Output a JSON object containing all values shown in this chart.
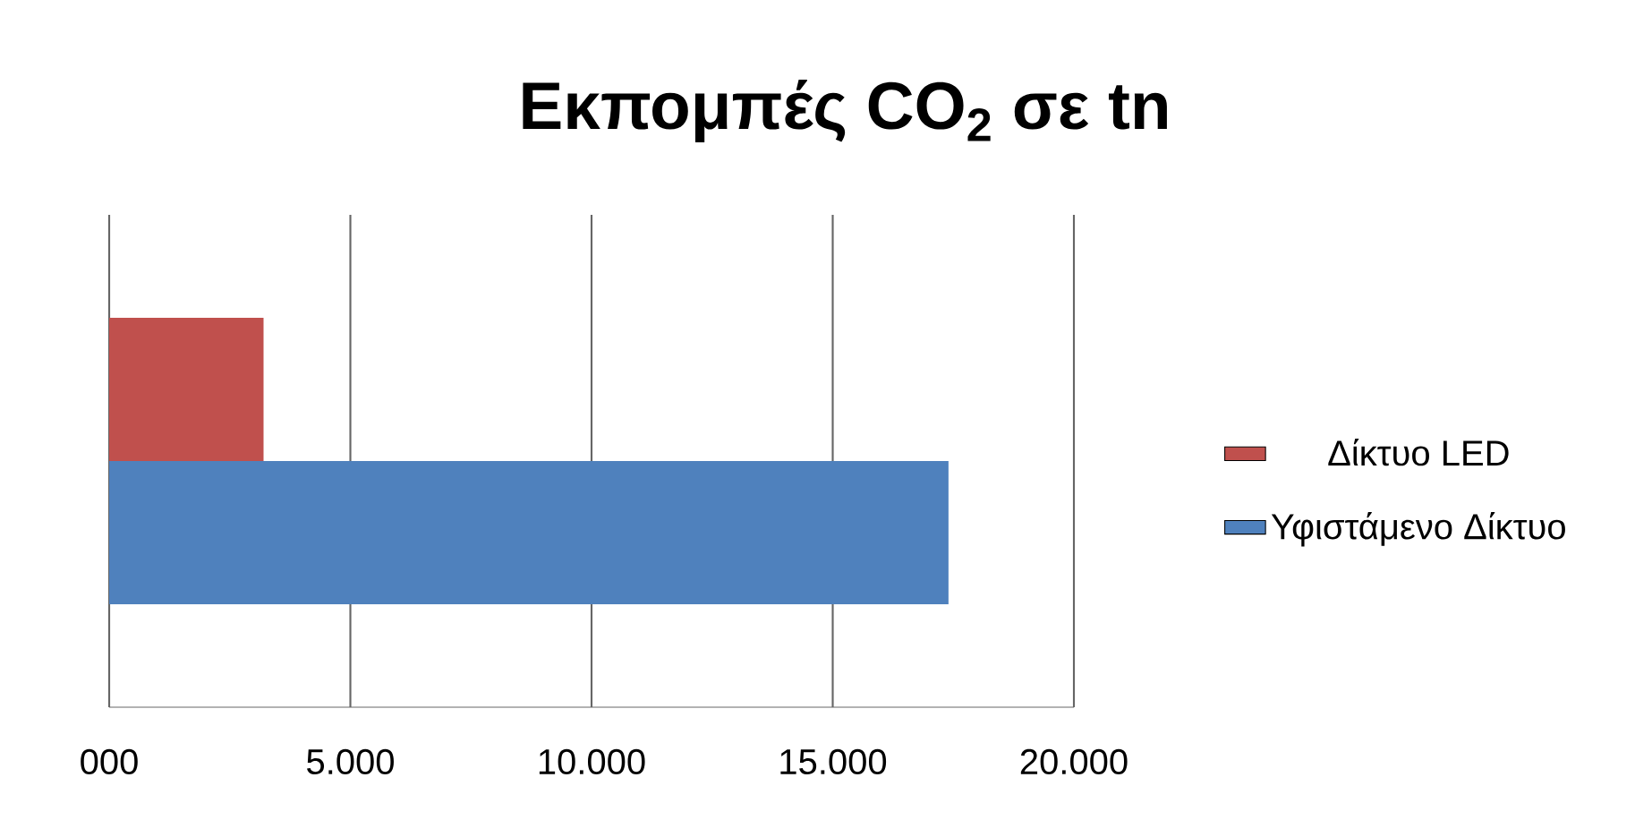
{
  "chart_data": {
    "type": "bar",
    "orientation": "horizontal",
    "title": "Εκπομπές CO$_{2}$ σε tn",
    "categories": [
      null
    ],
    "series": [
      {
        "name": "Υφιστάμενο Δίκτυο",
        "color": "#4f81bd",
        "values": [
          17400
        ]
      },
      {
        "name": "Δίκτυο LED",
        "color": "#c0504d",
        "values": [
          3200
        ]
      }
    ],
    "xlim": [
      0,
      20000
    ],
    "xticks": [
      {
        "value": 0,
        "label": "000"
      },
      {
        "value": 5000,
        "label": "5.000"
      },
      {
        "value": 10000,
        "label": "10.000"
      },
      {
        "value": 15000,
        "label": "15.000"
      },
      {
        "value": 20000,
        "label": "20.000"
      }
    ],
    "grid": "x",
    "legend": "right"
  }
}
